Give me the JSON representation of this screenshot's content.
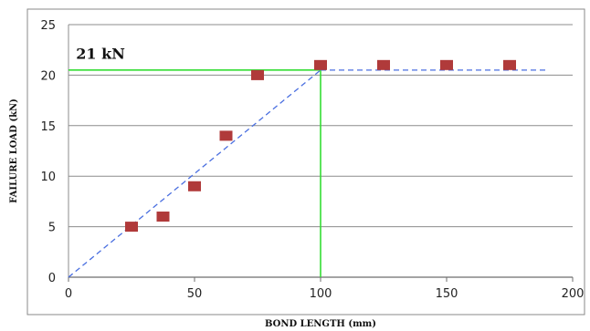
{
  "chart_data": {
    "type": "scatter",
    "title": "",
    "xlabel": "BOND LENGTH (mm)",
    "ylabel": "FAILURE LOAD (kN)",
    "xlim": [
      0,
      200
    ],
    "ylim": [
      0,
      25
    ],
    "x_ticks": [
      "0",
      "50",
      "100",
      "150",
      "200"
    ],
    "y_ticks": [
      "0",
      "5",
      "10",
      "15",
      "20",
      "25"
    ],
    "grid": "horizontal",
    "series": [
      {
        "x": [
          25,
          37.5,
          50,
          62.5,
          75,
          100,
          125,
          150,
          175
        ],
        "y": [
          5,
          6,
          9,
          14,
          20,
          21,
          21,
          21,
          21
        ],
        "color": "#b03a3a",
        "marker": "square"
      }
    ],
    "trend_lines": [
      {
        "style": "dashed",
        "color": "#4a6fe0",
        "x": [
          0,
          100
        ],
        "y": [
          0,
          20.5
        ]
      },
      {
        "style": "dashed",
        "color": "#4a6fe0",
        "x": [
          100,
          190
        ],
        "y": [
          20.5,
          20.5
        ]
      }
    ],
    "reference_lines": [
      {
        "color": "#33dd33",
        "x": [
          0,
          100
        ],
        "y": [
          20.5,
          20.5
        ]
      },
      {
        "color": "#33dd33",
        "x": [
          100,
          100
        ],
        "y": [
          0,
          20.5
        ]
      }
    ],
    "annotations": [
      {
        "text": "21 kN",
        "x": 3,
        "y": 21.6
      }
    ]
  }
}
